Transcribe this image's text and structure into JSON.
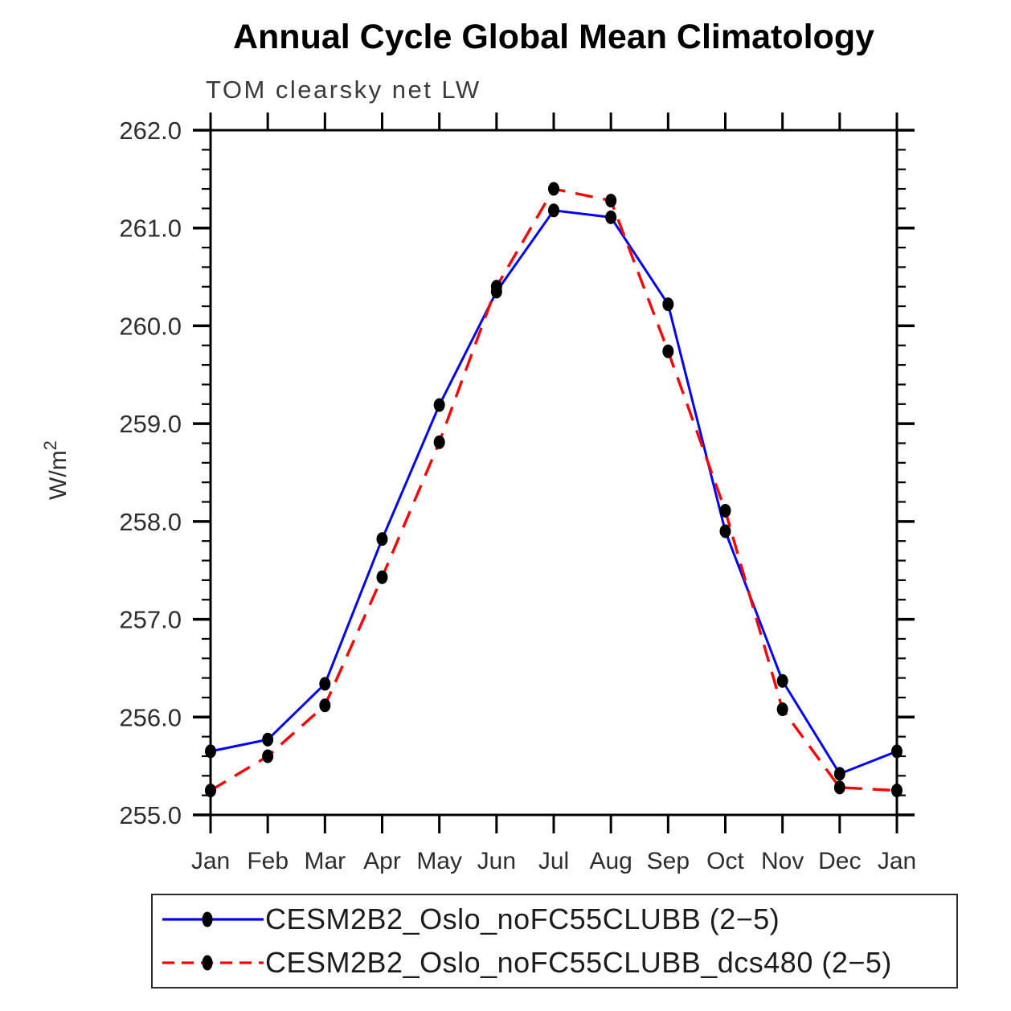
{
  "chart_data": {
    "type": "line",
    "title": "Annual Cycle Global Mean Climatology",
    "subtitle": "TOM clearsky net LW",
    "ylabel": "W/m2",
    "ylabel_base": "W/m",
    "ylabel_sup": "2",
    "xlabel": "",
    "categories": [
      "Jan",
      "Feb",
      "Mar",
      "Apr",
      "May",
      "Jun",
      "Jul",
      "Aug",
      "Sep",
      "Oct",
      "Nov",
      "Dec",
      "Jan"
    ],
    "ylim": [
      255.0,
      262.0
    ],
    "ytick_step": 1.0,
    "yminor_step": 0.2,
    "ytick_labels": [
      "255.0",
      "256.0",
      "257.0",
      "258.0",
      "259.0",
      "260.0",
      "261.0",
      "262.0"
    ],
    "grid": false,
    "legend_position": "bottom",
    "axis_color": "#000000",
    "text_color": "#2e2e2e",
    "marker_color": "#000000",
    "series": [
      {
        "name": "CESM2B2_Oslo_noFC55CLUBB (2−5)",
        "color": "#0000ff",
        "style": "solid",
        "values": [
          255.65,
          255.77,
          256.34,
          257.82,
          259.19,
          260.35,
          261.18,
          261.11,
          260.22,
          257.9,
          256.37,
          255.42,
          255.65
        ]
      },
      {
        "name": "CESM2B2_Oslo_noFC55CLUBB_dcs480 (2−5)",
        "color": "#ff0000",
        "style": "dashed",
        "values": [
          255.25,
          255.6,
          256.12,
          257.43,
          258.81,
          260.4,
          261.4,
          261.28,
          259.74,
          258.11,
          256.08,
          255.28,
          255.25
        ]
      }
    ]
  }
}
